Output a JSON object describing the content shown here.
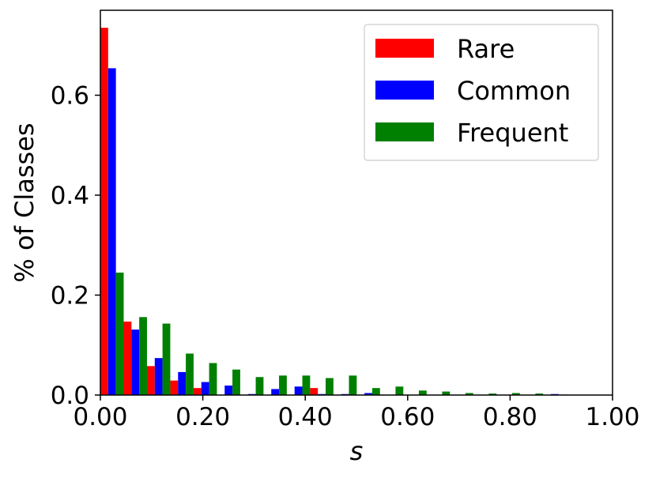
{
  "chart_data": {
    "type": "bar",
    "xlabel": "s",
    "ylabel": "% of Classes",
    "xlim": [
      0,
      1
    ],
    "ylim": [
      0,
      0.77
    ],
    "bin_width": 0.0455,
    "bin_starts": [
      0.0,
      0.0455,
      0.091,
      0.1365,
      0.182,
      0.2275,
      0.273,
      0.3185,
      0.364,
      0.4095,
      0.455,
      0.5005,
      0.546,
      0.5915,
      0.637,
      0.6825,
      0.728,
      0.7735,
      0.819,
      0.8645,
      0.91
    ],
    "x_ticks": [
      0.0,
      0.2,
      0.4,
      0.6,
      0.8,
      1.0
    ],
    "x_tick_labels": [
      "0.00",
      "0.20",
      "0.40",
      "0.60",
      "0.80",
      "1.00"
    ],
    "y_ticks": [
      0.0,
      0.2,
      0.4,
      0.6
    ],
    "y_tick_labels": [
      "0.0",
      "0.2",
      "0.4",
      "0.6"
    ],
    "grid": false,
    "legend_position": "top-right",
    "series": [
      {
        "name": "Rare",
        "color": "#ff0000",
        "values": [
          0.735,
          0.147,
          0.058,
          0.029,
          0.014,
          0.0,
          0.0,
          0.0,
          0.0,
          0.014,
          0.0,
          0.0,
          0.0,
          0.0,
          0.0,
          0.0,
          0.0,
          0.0,
          0.0,
          0.0,
          0.0
        ]
      },
      {
        "name": "Common",
        "color": "#0000ff",
        "values": [
          0.654,
          0.131,
          0.074,
          0.046,
          0.026,
          0.019,
          0.002,
          0.012,
          0.017,
          0.002,
          0.002,
          0.004,
          0.0,
          0.0,
          0.0,
          0.0,
          0.0,
          0.0,
          0.0,
          0.002,
          0.0
        ]
      },
      {
        "name": "Frequent",
        "color": "#008000",
        "values": [
          0.245,
          0.156,
          0.143,
          0.083,
          0.064,
          0.051,
          0.036,
          0.039,
          0.039,
          0.034,
          0.039,
          0.014,
          0.017,
          0.009,
          0.007,
          0.004,
          0.003,
          0.004,
          0.003,
          0.001,
          0.0
        ]
      }
    ]
  }
}
